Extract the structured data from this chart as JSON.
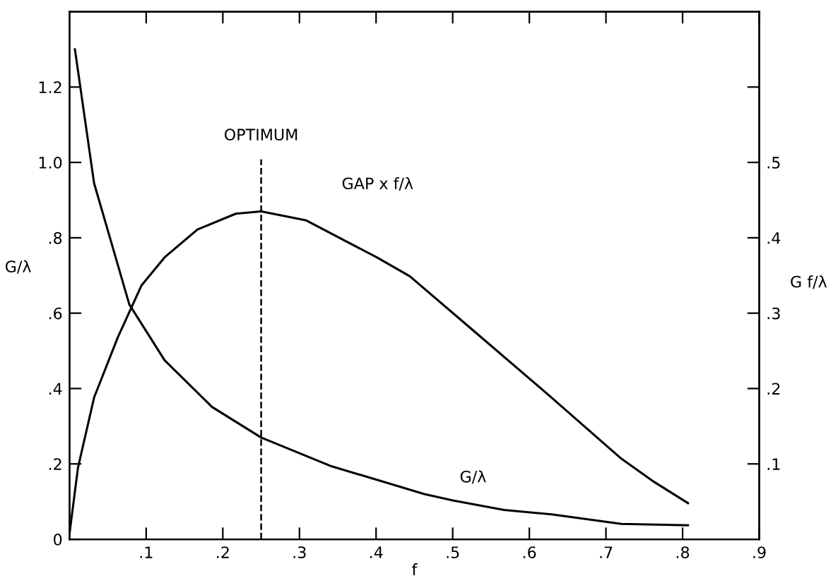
{
  "chart_data": {
    "type": "line",
    "xlabel": "f",
    "ylabel": "G/λ",
    "y2label": "G f/λ",
    "series": [
      {
        "name": "G/λ",
        "color": "#000000",
        "x": [
          0.007,
          0.032,
          0.078,
          0.124,
          0.186,
          0.25,
          0.34,
          0.463,
          0.5,
          0.567,
          0.629,
          0.72,
          0.807
        ],
        "values": [
          1.3,
          0.945,
          0.623,
          0.475,
          0.351,
          0.27,
          0.195,
          0.12,
          0.103,
          0.078,
          0.066,
          0.041,
          0.037
        ]
      },
      {
        "name": "GAP x f/λ",
        "color": "#000000",
        "axis": "y2",
        "x": [
          0,
          0.011,
          0.032,
          0.063,
          0.094,
          0.124,
          0.167,
          0.217,
          0.25,
          0.309,
          0.401,
          0.444,
          0.536,
          0.629,
          0.72,
          0.763,
          0.807
        ],
        "values": [
          0.008,
          0.095,
          0.188,
          0.268,
          0.337,
          0.374,
          0.411,
          0.432,
          0.435,
          0.423,
          0.374,
          0.349,
          0.269,
          0.188,
          0.107,
          0.076,
          0.048
        ]
      }
    ],
    "xlim": [
      0,
      0.9
    ],
    "xticks": [
      {
        "value": 0.1,
        "label": ".1"
      },
      {
        "value": 0.2,
        "label": ".2"
      },
      {
        "value": 0.3,
        "label": ".3"
      },
      {
        "value": 0.4,
        "label": ".4"
      },
      {
        "value": 0.5,
        "label": ".5"
      },
      {
        "value": 0.6,
        "label": ".6"
      },
      {
        "value": 0.7,
        "label": ".7"
      },
      {
        "value": 0.8,
        "label": ".8"
      },
      {
        "value": 0.9,
        "label": ".9"
      }
    ],
    "ylim": [
      0,
      1.4
    ],
    "yticks": [
      0,
      {
        "value": 0.2,
        "label": ".2"
      },
      {
        "value": 0.4,
        "label": ".4"
      },
      {
        "value": 0.6,
        "label": ".6"
      },
      {
        "value": 0.8,
        "label": ".8"
      },
      {
        "value": 1.0,
        "label": "1.0"
      },
      {
        "value": 1.2,
        "label": "1.2"
      }
    ],
    "y2lim": [
      0,
      0.7
    ],
    "y2ticks": [
      {
        "value": 0.1,
        "label": ".1"
      },
      {
        "value": 0.2,
        "label": ".2"
      },
      {
        "value": 0.3,
        "label": ".3"
      },
      {
        "value": 0.4,
        "label": ".4"
      },
      {
        "value": 0.5,
        "label": ".5"
      },
      {
        "value": 0.6,
        "label": null
      }
    ],
    "ref_lines": [
      {
        "axis": "x",
        "value": 0.25,
        "label": "OPTIMUM",
        "line_style": "dashed"
      }
    ],
    "grid": false,
    "legend": false,
    "marker": "none",
    "line_style": "solid"
  }
}
